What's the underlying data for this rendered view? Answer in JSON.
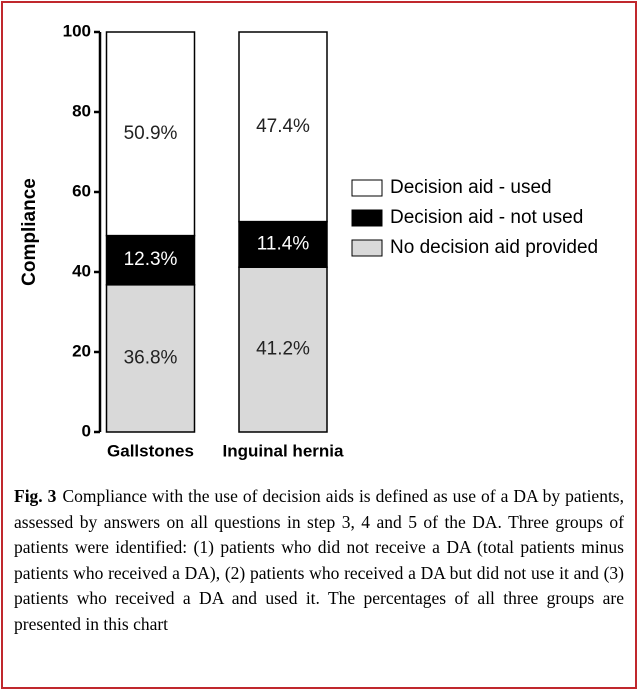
{
  "chart_data": {
    "type": "stacked_bar",
    "ylabel": "Compliance",
    "categories": [
      "Gallstones",
      "Inguinal hernia"
    ],
    "series": [
      {
        "name": "No decision aid provided",
        "color": "#d9d9d9",
        "values": [
          36.8,
          41.2
        ],
        "value_labels": [
          "36.8%",
          "41.2%"
        ]
      },
      {
        "name": "Decision aid - not used",
        "color": "#000000",
        "values": [
          12.3,
          11.4
        ],
        "value_labels": [
          "12.3%",
          "11.4%"
        ]
      },
      {
        "name": "Decision aid - used",
        "color": "#ffffff",
        "values": [
          50.9,
          47.4
        ],
        "value_labels": [
          "50.9%",
          "47.4%"
        ]
      }
    ],
    "ylim": [
      0,
      100
    ],
    "yticks": [
      0,
      20,
      40,
      60,
      80,
      100
    ]
  },
  "caption": {
    "label": "Fig. 3",
    "text": "Compliance with the use of decision aids is defined as use of a DA by patients, assessed by answers on all questions in step 3, 4 and 5 of the DA. Three groups of patients were identified: (1) patients who did not receive a DA (total patients minus patients who received a DA), (2) patients who received a DA but did not use it and (3) patients who received a DA and used it. The percentages of all three groups are presented in this chart"
  }
}
